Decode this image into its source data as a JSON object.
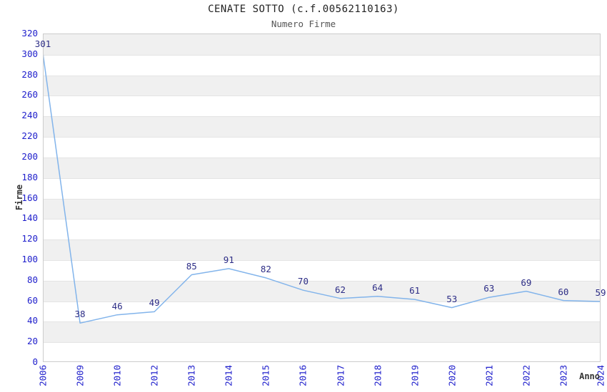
{
  "chart_data": {
    "type": "line",
    "title": "CENATE SOTTO (c.f.00562110163)",
    "subtitle": "Numero Firme",
    "xlabel": "Anno",
    "ylabel": "Firme",
    "categories": [
      "2006",
      "2009",
      "2010",
      "2012",
      "2013",
      "2014",
      "2015",
      "2016",
      "2017",
      "2018",
      "2019",
      "2020",
      "2021",
      "2022",
      "2023",
      "2024"
    ],
    "values": [
      301,
      38,
      46,
      49,
      85,
      91,
      82,
      70,
      62,
      64,
      61,
      53,
      63,
      69,
      60,
      59
    ],
    "ylim": [
      0,
      320
    ],
    "ytick_interval": 20,
    "ytick_labels": [
      "0",
      "20",
      "40",
      "60",
      "80",
      "100",
      "120",
      "140",
      "160",
      "180",
      "200",
      "220",
      "240",
      "260",
      "280",
      "300",
      "320"
    ],
    "grid": "horizontal-stripes",
    "legend": "none",
    "colors": {
      "line": "#82b4eb",
      "tick_label": "#2020cc",
      "data_label": "#2d2d86",
      "stripe": "#f0f0f0",
      "gridline": "#e4e4e4",
      "plot_border": "#cccccc",
      "title": "#222222",
      "subtitle": "#555555",
      "axis_title": "#333333"
    }
  }
}
